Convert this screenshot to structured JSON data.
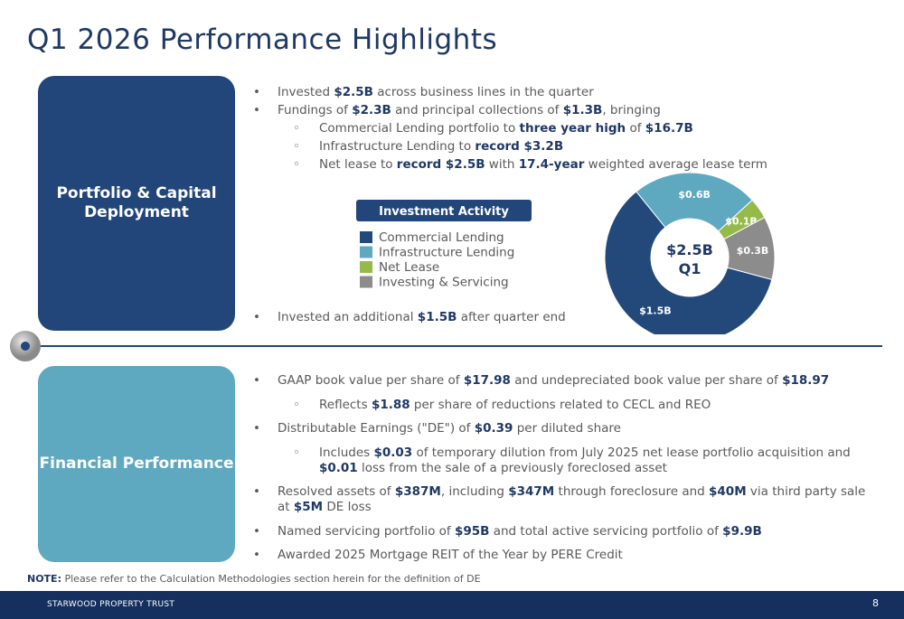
{
  "title": "Q1 2026 Performance Highlights",
  "portfolio": {
    "heading": "Portfolio & Capital Deployment",
    "bullets": [
      {
        "level": 1,
        "runs": [
          {
            "t": "Invested "
          },
          {
            "t": "$2.5B",
            "b": true
          },
          {
            "t": " across business lines in the quarter"
          }
        ]
      },
      {
        "level": 1,
        "runs": [
          {
            "t": "Fundings of "
          },
          {
            "t": "$2.3B",
            "b": true
          },
          {
            "t": " and principal collections of "
          },
          {
            "t": "$1.3B",
            "b": true
          },
          {
            "t": ", bringing"
          }
        ]
      },
      {
        "level": 2,
        "runs": [
          {
            "t": "Commercial Lending portfolio to "
          },
          {
            "t": "three year high",
            "b": true
          },
          {
            "t": " of "
          },
          {
            "t": "$16.7B",
            "b": true
          }
        ]
      },
      {
        "level": 2,
        "runs": [
          {
            "t": "Infrastructure Lending to "
          },
          {
            "t": "record $3.2B",
            "b": true
          }
        ]
      },
      {
        "level": 2,
        "runs": [
          {
            "t": "Net lease to "
          },
          {
            "t": "record $2.5B",
            "b": true
          },
          {
            "t": " with "
          },
          {
            "t": "17.4-year",
            "b": true
          },
          {
            "t": " weighted average lease term"
          }
        ]
      }
    ],
    "after_bullets": [
      {
        "level": 1,
        "runs": [
          {
            "t": "Invested an additional "
          },
          {
            "t": "$1.5B",
            "b": true
          },
          {
            "t": " after quarter end"
          }
        ]
      }
    ]
  },
  "financial": {
    "heading": "Financial Performance",
    "bullets": [
      {
        "level": 1,
        "runs": [
          {
            "t": "GAAP book value per share of "
          },
          {
            "t": "$17.98",
            "b": true
          },
          {
            "t": " and undepreciated book value per share of "
          },
          {
            "t": "$18.97",
            "b": true
          }
        ]
      },
      {
        "level": 2,
        "runs": [
          {
            "t": "Reflects "
          },
          {
            "t": "$1.88",
            "b": true
          },
          {
            "t": " per share of reductions related to CECL and REO"
          }
        ]
      },
      {
        "level": 1,
        "runs": [
          {
            "t": "Distributable Earnings (\"DE\") of "
          },
          {
            "t": "$0.39",
            "b": true
          },
          {
            "t": " per diluted share"
          }
        ]
      },
      {
        "level": 2,
        "runs": [
          {
            "t": "Includes "
          },
          {
            "t": "$0.03",
            "b": true
          },
          {
            "t": " of temporary dilution from July 2025 net lease portfolio acquisition and "
          },
          {
            "t": "$0.01",
            "b": true
          },
          {
            "t": " loss from the sale of a previously foreclosed asset"
          }
        ]
      },
      {
        "level": 1,
        "runs": [
          {
            "t": "Resolved assets of "
          },
          {
            "t": "$387M",
            "b": true
          },
          {
            "t": ", including "
          },
          {
            "t": "$347M",
            "b": true
          },
          {
            "t": " through foreclosure and "
          },
          {
            "t": "$40M",
            "b": true
          },
          {
            "t": " via third party sale at "
          },
          {
            "t": "$5M",
            "b": true
          },
          {
            "t": " DE loss"
          }
        ]
      },
      {
        "level": 1,
        "runs": [
          {
            "t": "Named servicing portfolio of "
          },
          {
            "t": "$95B",
            "b": true
          },
          {
            "t": " and total active servicing portfolio of "
          },
          {
            "t": "$9.9B",
            "b": true
          }
        ]
      },
      {
        "level": 1,
        "runs": [
          {
            "t": "Awarded 2025 Mortgage REIT of the Year by PERE Credit"
          }
        ]
      }
    ]
  },
  "chart_data": {
    "type": "donut",
    "title": "Investment Activity",
    "categories": [
      "Commercial Lending",
      "Infrastructure Lending",
      "Net Lease",
      "Investing & Servicing"
    ],
    "values": [
      1.5,
      0.6,
      0.1,
      0.3
    ],
    "value_labels": [
      "$1.5B",
      "$0.6B",
      "$0.1B",
      "$0.3B"
    ],
    "colors": [
      "#23497b",
      "#5ea9c0",
      "#94bb4a",
      "#8c8c8c"
    ],
    "center_value": "$2.5B",
    "center_subtitle": "Q1"
  },
  "note": {
    "label": "NOTE:",
    "text": "Please refer to the Calculation Methodologies section herein for the definition of DE"
  },
  "footer": {
    "company": "STARWOOD PROPERTY TRUST",
    "page": "8"
  }
}
